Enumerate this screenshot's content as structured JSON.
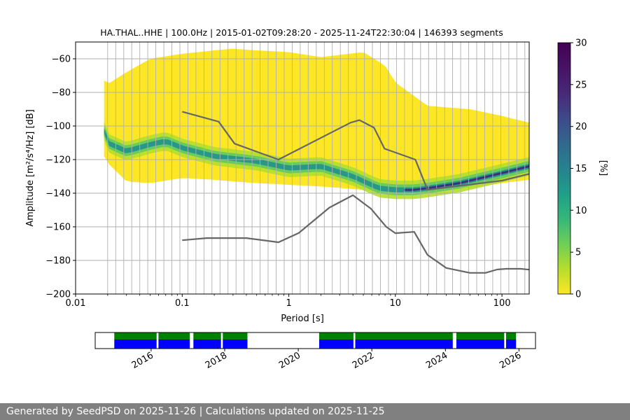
{
  "chart_data": [
    {
      "type": "heatmap",
      "title": "HA.THAL..HHE | 100.0Hz | 2015-01-02T09:28:20 - 2025-11-24T22:30:04 | 146393 segments",
      "xlabel": "Period [s]",
      "ylabel": "Amplitude [m²/s⁴/Hz] [dB]",
      "xscale": "log",
      "xlim": [
        0.01,
        180
      ],
      "ylim": [
        -200,
        -50
      ],
      "x_tick_labels": [
        "0.01",
        "0.1",
        "1",
        "10",
        "100"
      ],
      "y_ticks": [
        -60,
        -80,
        -100,
        -120,
        -140,
        -160,
        -180,
        -200
      ],
      "grid": "vertical lines at PSD frequency bins",
      "colorbar": {
        "label": "[%]",
        "range": [
          0,
          30
        ],
        "ticks": [
          0,
          5,
          10,
          15,
          20,
          25,
          30
        ],
        "colormap": "viridis_r"
      },
      "density_envelope": {
        "period": [
          0.0185,
          0.02,
          0.03,
          0.05,
          0.1,
          0.2,
          0.3,
          0.5,
          1,
          2,
          5,
          8,
          10,
          20,
          50,
          100,
          180
        ],
        "upper_db": [
          -73,
          -75,
          -68,
          -60,
          -57,
          -55,
          -54,
          -55,
          -56,
          -59,
          -56,
          -64,
          -74,
          -88,
          -90,
          -94,
          -98
        ],
        "lower_db": [
          -118,
          -122,
          -133,
          -134,
          -131,
          -132,
          -133,
          -134,
          -135,
          -136,
          -138,
          -140,
          -141,
          -140,
          -137,
          -134,
          -132
        ]
      },
      "mode_curve": {
        "period": [
          0.0185,
          0.02,
          0.03,
          0.05,
          0.07,
          0.1,
          0.2,
          0.5,
          1,
          2,
          4,
          7,
          10,
          15,
          20,
          40,
          100,
          180
        ],
        "db": [
          -103,
          -110,
          -115,
          -111,
          -109,
          -113,
          -118,
          -121,
          -125,
          -124,
          -130,
          -137,
          -138,
          -138,
          -137,
          -134,
          -128,
          -124
        ]
      },
      "series": [
        {
          "name": "",
          "x": [
            0.1,
            0.22,
            0.31,
            0.8,
            3.8,
            4.6,
            6.3,
            7.9,
            15.4,
            20,
            100,
            180
          ],
          "y": [
            -91.5,
            -97.4,
            -110.5,
            -120.0,
            -98.0,
            -96.5,
            -101.0,
            -113.5,
            -120.0,
            -138.0,
            -132.5,
            -128.5
          ]
        },
        {
          "name": "",
          "x": [
            0.1,
            0.17,
            0.4,
            0.8,
            1.24,
            2.4,
            4.0,
            5.9,
            8.2,
            10.0,
            15.0,
            20.0,
            30.0,
            50.0,
            70.0,
            90.0,
            110.0,
            150.0,
            180.0
          ],
          "y": [
            -168.0,
            -166.7,
            -166.7,
            -169.2,
            -163.7,
            -148.6,
            -141.2,
            -149.2,
            -160.0,
            -163.8,
            -163.0,
            -176.7,
            -184.5,
            -187.4,
            -187.4,
            -185.4,
            -185.0,
            -185.0,
            -185.5
          ]
        }
      ]
    },
    {
      "type": "bar",
      "title": "",
      "xlabel": "",
      "x_tick_labels": [
        "2016",
        "2018",
        "2020",
        "2022",
        "2024",
        "2026"
      ],
      "xlim_years": [
        2014.48,
        2026.45
      ],
      "description_colors": {
        "data_available": "#0000ff",
        "processed": "#008000"
      },
      "available_intervals": [
        [
          2015.0,
          2016.15
        ],
        [
          2016.2,
          2017.05
        ],
        [
          2017.15,
          2017.9
        ],
        [
          2017.95,
          2018.62
        ],
        [
          2020.57,
          2021.5
        ],
        [
          2021.55,
          2024.2
        ],
        [
          2024.3,
          2025.6
        ],
        [
          2025.65,
          2025.92
        ]
      ]
    }
  ],
  "footer": {
    "text": "Generated by SeedPSD on 2025-11-26 | Calculations updated on 2025-11-25"
  }
}
